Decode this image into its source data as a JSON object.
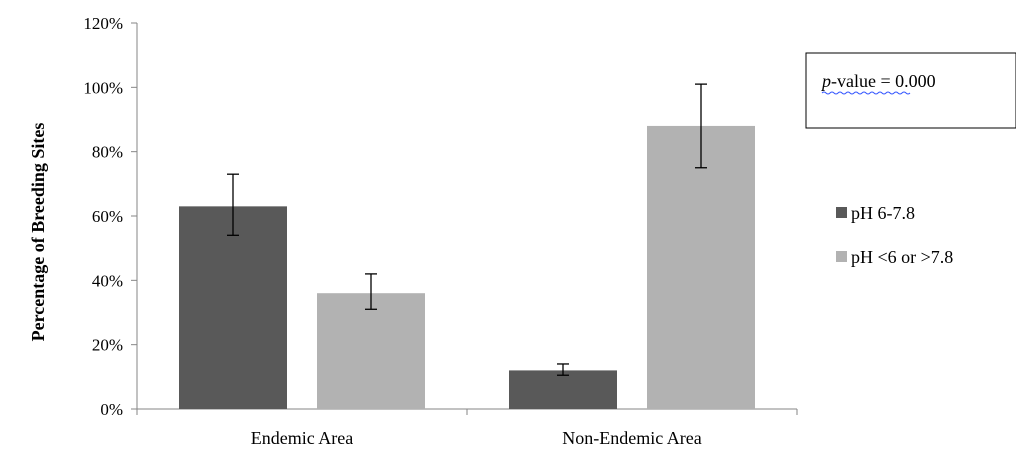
{
  "chart_data": {
    "type": "bar",
    "ylabel": "Percentage of Breeding Sites",
    "ylim": [
      0,
      120
    ],
    "y_ticks": [
      "0%",
      "20%",
      "40%",
      "60%",
      "80%",
      "100%",
      "120%"
    ],
    "categories": [
      "Endemic Area",
      "Non-Endemic Area"
    ],
    "series": [
      {
        "name": "pH 6-7.8",
        "color": "#595959",
        "values": [
          63,
          12
        ],
        "error_low": [
          54,
          10.5
        ],
        "error_high": [
          73,
          14
        ]
      },
      {
        "name": "pH <6 or >7.8",
        "color": "#b2b2b2",
        "values": [
          36,
          88
        ],
        "error_low": [
          31,
          75
        ],
        "error_high": [
          42,
          101
        ]
      }
    ],
    "grid": false,
    "legend_position": "right",
    "annotation": {
      "p_prefix": "p",
      "p_rest": "-value = 0.000"
    }
  }
}
